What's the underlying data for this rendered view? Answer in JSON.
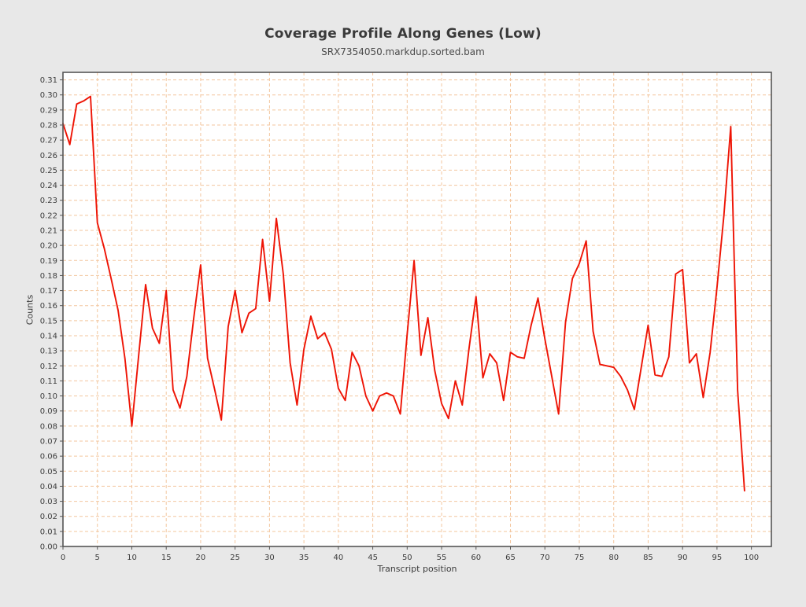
{
  "title": "Coverage Profile Along Genes (Low)",
  "subtitle": "SRX7354050.markdup.sorted.bam",
  "chart_data": {
    "type": "line",
    "title": "Coverage Profile Along Genes (Low)",
    "subtitle": "SRX7354050.markdup.sorted.bam",
    "xlabel": "Transcript position",
    "ylabel": "Counts",
    "legend_position": "none",
    "grid": true,
    "grid_style": "dashed",
    "grid_color": "#f3c69e",
    "line_color": "#ee1405",
    "frame_color": "#555555",
    "plot_background": "#ffffff",
    "page_background": "#e8e8e8",
    "xlim": [
      0,
      102.9
    ],
    "ylim": [
      0,
      0.315
    ],
    "x_ticks": [
      0,
      5,
      10,
      15,
      20,
      25,
      30,
      35,
      40,
      45,
      50,
      55,
      60,
      65,
      70,
      75,
      80,
      85,
      90,
      95,
      100
    ],
    "y_tick_min": 0.0,
    "y_tick_max": 0.31,
    "y_tick_step": 0.01,
    "series": [
      {
        "name": "SRX7354050.markdup.sorted.bam",
        "x_start": 0,
        "x_step": 1,
        "values": [
          0.281,
          0.267,
          0.294,
          0.296,
          0.299,
          0.215,
          0.198,
          0.178,
          0.157,
          0.125,
          0.08,
          0.127,
          0.174,
          0.145,
          0.135,
          0.17,
          0.104,
          0.092,
          0.113,
          0.152,
          0.187,
          0.125,
          0.105,
          0.084,
          0.146,
          0.17,
          0.142,
          0.155,
          0.158,
          0.204,
          0.163,
          0.218,
          0.181,
          0.122,
          0.094,
          0.131,
          0.153,
          0.138,
          0.142,
          0.131,
          0.105,
          0.097,
          0.129,
          0.12,
          0.1,
          0.09,
          0.1,
          0.102,
          0.1,
          0.088,
          0.141,
          0.19,
          0.127,
          0.152,
          0.117,
          0.095,
          0.085,
          0.11,
          0.094,
          0.132,
          0.166,
          0.112,
          0.128,
          0.122,
          0.097,
          0.129,
          0.126,
          0.125,
          0.147,
          0.165,
          0.138,
          0.113,
          0.088,
          0.149,
          0.178,
          0.188,
          0.203,
          0.143,
          0.121,
          0.12,
          0.119,
          0.113,
          0.104,
          0.091,
          0.119,
          0.147,
          0.114,
          0.113,
          0.126,
          0.181,
          0.184,
          0.122,
          0.128,
          0.099,
          0.129,
          0.172,
          0.22,
          0.279,
          0.104,
          0.037
        ]
      }
    ]
  }
}
